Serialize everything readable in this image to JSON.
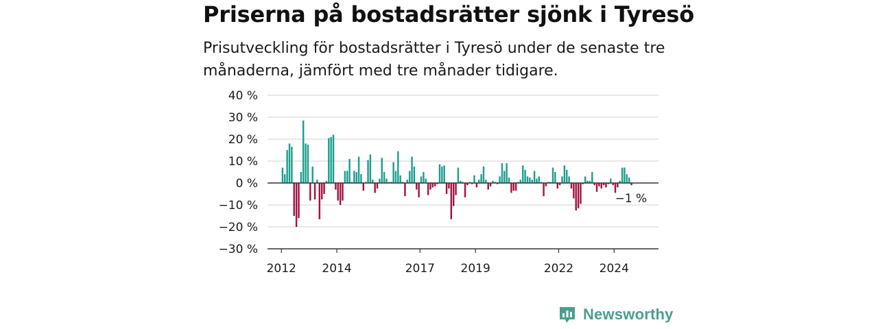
{
  "header": {
    "title": "Priserna på bostadsrätter sjönk i Tyresö",
    "subtitle": "Prisutveckling för bostadsrätter i Tyresö under de senaste tre månaderna, jämfört med tre månader tidigare."
  },
  "brand": {
    "name": "Newsworthy",
    "color": "#4a9e8f",
    "icon": "newsworthy-chart-icon"
  },
  "colors": {
    "positive": "#1b9e8e",
    "negative": "#a3123f",
    "grid": "#d9d9d9",
    "axis": "#333333"
  },
  "chart_data": {
    "type": "bar",
    "title": "Priserna på bostadsrätter sjönk i Tyresö",
    "xlabel": "",
    "ylabel": "",
    "ylim": [
      -30,
      40
    ],
    "yticks": [
      40,
      30,
      20,
      10,
      0,
      -10,
      -20,
      -30
    ],
    "ytick_labels": [
      "40 %",
      "30 %",
      "20 %",
      "10 %",
      "0 %",
      "−10 %",
      "−20 %",
      "−30 %"
    ],
    "xticks": [
      2012,
      2014,
      2017,
      2019,
      2022,
      2024
    ],
    "x_start": 2011.5,
    "x_end": 2025.6,
    "series": [
      {
        "frequency": "monthly",
        "start": "2012-01",
        "values": [
          7,
          4,
          15,
          18,
          16.5,
          -15,
          -20,
          -16,
          5,
          28.5,
          18,
          17.5,
          -8,
          7.5,
          -7.5,
          1.5,
          -16.5,
          -7.5,
          -5,
          1,
          20.5,
          21,
          22,
          -3,
          -8,
          -10,
          -8,
          5.5,
          5.5,
          11,
          0.5,
          5.5,
          5,
          12,
          4,
          -3.5,
          0.5,
          10.5,
          13,
          1.5,
          -4.5,
          -2.5,
          2,
          11.5,
          5,
          2,
          0.5,
          0.5,
          9.5,
          5.5,
          14.5,
          3.5,
          0.5,
          -6,
          1.5,
          5.5,
          12,
          7.5,
          -3,
          -6.5,
          3,
          5,
          2,
          -5.5,
          -3,
          -2,
          -1.5,
          -0.5,
          8.5,
          7.5,
          8,
          -5,
          -2.5,
          -16.5,
          -10.5,
          -5.5,
          7,
          1,
          0.5,
          -6.5,
          -1,
          0.5,
          -0.5,
          3.5,
          -2,
          1.5,
          4,
          7.5,
          1.5,
          -3,
          -1.5,
          1,
          0.5,
          -0.5,
          3,
          9,
          5.5,
          9,
          2.5,
          -4.5,
          -3.5,
          -3.5,
          0.5,
          1.5,
          8,
          6,
          3,
          2.5,
          1.5,
          5.5,
          2,
          3,
          0.5,
          -6,
          -1.5,
          0.5,
          0.5,
          7,
          5,
          -2.5,
          -1,
          3,
          8,
          6,
          3,
          -2.5,
          -7,
          -12.5,
          -11.5,
          -9.5,
          -0.5,
          3,
          1,
          1,
          5,
          -1,
          -4,
          -1.5,
          -2.5,
          -1,
          -2,
          -0.5,
          2,
          -1,
          -4.5,
          -2,
          1,
          7,
          7,
          4,
          2.5,
          -1
        ]
      }
    ],
    "annotations": [
      {
        "label": "−1 %",
        "target": "last-value"
      }
    ]
  }
}
